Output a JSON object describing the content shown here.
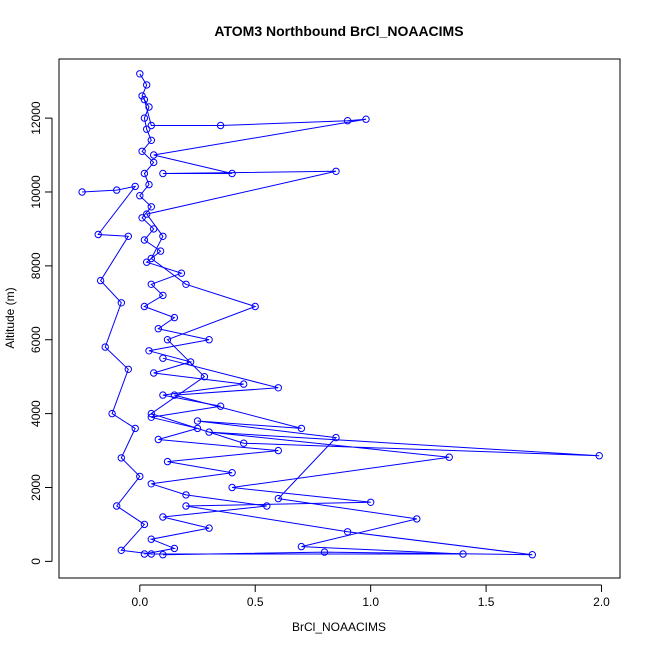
{
  "chart_data": {
    "type": "scatter",
    "title": "ATOM3 Northbound BrCl_NOAACIMS",
    "xlabel": "BrCl_NOAACIMS",
    "ylabel": "Altitude (m)",
    "xlim": [
      -0.35,
      2.08
    ],
    "ylim": [
      -450,
      13600
    ],
    "x_ticks": [
      0.0,
      0.5,
      1.0,
      1.5,
      2.0
    ],
    "x_tick_labels": [
      "0.0",
      "0.5",
      "1.0",
      "1.5",
      "2.0"
    ],
    "y_ticks": [
      0,
      2000,
      4000,
      6000,
      8000,
      10000,
      12000
    ],
    "y_tick_labels": [
      "0",
      "2000",
      "4000",
      "6000",
      "8000",
      "10000",
      "12000"
    ],
    "grid": false,
    "legend": "none",
    "style": "points-and-lines",
    "series_color": "#0000ff",
    "series": [
      {
        "values": [
          [
            0.02,
            200
          ],
          [
            0.15,
            350
          ],
          [
            0.05,
            600
          ],
          [
            0.3,
            900
          ],
          [
            0.1,
            1200
          ],
          [
            0.55,
            1500
          ],
          [
            0.2,
            1800
          ],
          [
            0.05,
            2100
          ],
          [
            0.4,
            2400
          ],
          [
            0.12,
            2700
          ],
          [
            0.6,
            3000
          ],
          [
            0.08,
            3300
          ],
          [
            0.25,
            3600
          ],
          [
            0.05,
            3900
          ],
          [
            0.35,
            4200
          ],
          [
            0.1,
            4500
          ],
          [
            0.45,
            4800
          ],
          [
            0.06,
            5100
          ],
          [
            0.22,
            5400
          ],
          [
            0.04,
            5700
          ],
          [
            0.3,
            6000
          ],
          [
            0.08,
            6300
          ],
          [
            0.15,
            6600
          ],
          [
            0.02,
            6900
          ],
          [
            0.1,
            7200
          ],
          [
            0.05,
            7500
          ],
          [
            0.18,
            7800
          ],
          [
            0.03,
            8100
          ],
          [
            0.09,
            8400
          ],
          [
            0.02,
            8700
          ],
          [
            0.06,
            9000
          ],
          [
            0.01,
            9300
          ],
          [
            0.05,
            9600
          ],
          [
            0.0,
            9900
          ],
          [
            0.04,
            10200
          ],
          [
            0.02,
            10500
          ],
          [
            0.06,
            10800
          ],
          [
            0.01,
            11100
          ],
          [
            0.05,
            11400
          ],
          [
            0.03,
            11700
          ],
          [
            0.02,
            12000
          ],
          [
            0.04,
            12300
          ],
          [
            0.01,
            12600
          ],
          [
            0.03,
            12900
          ],
          [
            0.0,
            13200
          ]
        ]
      },
      {
        "values": [
          [
            0.1,
            180
          ],
          [
            0.8,
            250
          ],
          [
            1.7,
            180
          ],
          [
            0.9,
            800
          ],
          [
            0.2,
            1500
          ],
          [
            1.0,
            1600
          ],
          [
            0.4,
            2000
          ],
          [
            1.34,
            2820
          ],
          [
            0.3,
            3500
          ],
          [
            1.99,
            2860
          ],
          [
            0.45,
            3200
          ],
          [
            0.05,
            4000
          ],
          [
            0.28,
            5000
          ],
          [
            0.12,
            6000
          ],
          [
            0.5,
            6900
          ],
          [
            0.2,
            7500
          ],
          [
            0.05,
            8200
          ],
          [
            0.1,
            8800
          ],
          [
            0.03,
            9400
          ],
          [
            0.85,
            10560
          ],
          [
            0.1,
            10500
          ],
          [
            0.4,
            10500
          ],
          [
            0.06,
            11000
          ],
          [
            0.98,
            11970
          ],
          [
            0.9,
            11930
          ],
          [
            0.35,
            11800
          ],
          [
            0.05,
            11800
          ],
          [
            0.02,
            12500
          ]
        ]
      },
      {
        "values": [
          [
            -0.25,
            10000
          ],
          [
            -0.1,
            10050
          ],
          [
            -0.02,
            10150
          ],
          [
            -0.18,
            8850
          ],
          [
            -0.05,
            8800
          ],
          [
            -0.17,
            7600
          ],
          [
            -0.08,
            7000
          ],
          [
            -0.15,
            5800
          ],
          [
            -0.05,
            5200
          ],
          [
            -0.12,
            4000
          ],
          [
            -0.02,
            3600
          ],
          [
            -0.08,
            2800
          ],
          [
            0.0,
            2300
          ],
          [
            -0.1,
            1500
          ],
          [
            0.02,
            1000
          ],
          [
            -0.08,
            300
          ],
          [
            0.05,
            200
          ],
          [
            1.4,
            200
          ],
          [
            0.7,
            400
          ],
          [
            1.2,
            1150
          ],
          [
            0.6,
            1700
          ],
          [
            0.85,
            3350
          ],
          [
            0.25,
            3800
          ],
          [
            0.7,
            3600
          ],
          [
            0.15,
            4500
          ],
          [
            0.6,
            4700
          ],
          [
            0.1,
            5500
          ]
        ]
      }
    ]
  }
}
